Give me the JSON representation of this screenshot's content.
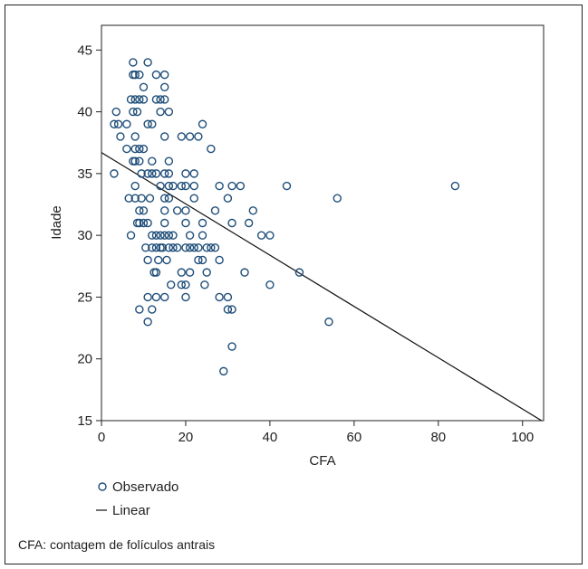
{
  "chart_data": {
    "type": "scatter",
    "xlabel": "CFA",
    "ylabel": "Idade",
    "xlim": [
      0,
      105
    ],
    "ylim": [
      15,
      47
    ],
    "xticks": [
      0,
      20,
      40,
      60,
      80,
      100
    ],
    "yticks": [
      15,
      20,
      25,
      30,
      35,
      40,
      45
    ],
    "grid": false,
    "legend_placement": "bottom-left",
    "series": [
      {
        "name": "Observado",
        "kind": "scatter",
        "color": "#1f4e79",
        "points": [
          [
            3,
            35
          ],
          [
            3,
            39
          ],
          [
            3.5,
            40
          ],
          [
            4,
            39
          ],
          [
            4.5,
            38
          ],
          [
            6,
            37
          ],
          [
            6,
            39
          ],
          [
            6.5,
            33
          ],
          [
            7,
            30
          ],
          [
            7,
            41
          ],
          [
            7.5,
            36
          ],
          [
            7.5,
            40
          ],
          [
            7.5,
            43
          ],
          [
            7.5,
            44
          ],
          [
            8,
            33
          ],
          [
            8,
            34
          ],
          [
            8,
            36
          ],
          [
            8,
            37
          ],
          [
            8,
            38
          ],
          [
            8,
            41
          ],
          [
            8,
            43
          ],
          [
            8.5,
            31
          ],
          [
            8.5,
            40
          ],
          [
            9,
            24
          ],
          [
            9,
            31
          ],
          [
            9,
            32
          ],
          [
            9,
            36
          ],
          [
            9,
            37
          ],
          [
            9,
            41
          ],
          [
            9,
            43
          ],
          [
            9.5,
            33
          ],
          [
            9.5,
            35
          ],
          [
            10,
            31
          ],
          [
            10,
            32
          ],
          [
            10,
            37
          ],
          [
            10,
            41
          ],
          [
            10,
            42
          ],
          [
            10.5,
            29
          ],
          [
            11,
            23
          ],
          [
            11,
            25
          ],
          [
            11,
            28
          ],
          [
            11,
            31
          ],
          [
            11,
            35
          ],
          [
            11,
            39
          ],
          [
            11,
            44
          ],
          [
            11.5,
            33
          ],
          [
            12,
            24
          ],
          [
            12,
            29
          ],
          [
            12,
            30
          ],
          [
            12,
            35
          ],
          [
            12,
            36
          ],
          [
            12,
            39
          ],
          [
            12.5,
            27
          ],
          [
            13,
            25
          ],
          [
            13,
            27
          ],
          [
            13,
            29
          ],
          [
            13,
            30
          ],
          [
            13,
            35
          ],
          [
            13,
            41
          ],
          [
            13,
            43
          ],
          [
            13.5,
            28
          ],
          [
            14,
            29
          ],
          [
            14,
            30
          ],
          [
            14,
            34
          ],
          [
            14,
            40
          ],
          [
            14,
            41
          ],
          [
            14.5,
            29
          ],
          [
            15,
            25
          ],
          [
            15,
            30
          ],
          [
            15,
            31
          ],
          [
            15,
            32
          ],
          [
            15,
            33
          ],
          [
            15,
            35
          ],
          [
            15,
            38
          ],
          [
            15,
            41
          ],
          [
            15,
            42
          ],
          [
            15,
            43
          ],
          [
            15.5,
            28
          ],
          [
            16,
            29
          ],
          [
            16,
            30
          ],
          [
            16,
            33
          ],
          [
            16,
            34
          ],
          [
            16,
            35
          ],
          [
            16,
            36
          ],
          [
            16,
            40
          ],
          [
            16.5,
            26
          ],
          [
            17,
            29
          ],
          [
            17,
            30
          ],
          [
            17,
            34
          ],
          [
            18,
            29
          ],
          [
            18,
            32
          ],
          [
            19,
            26
          ],
          [
            19,
            27
          ],
          [
            19,
            34
          ],
          [
            19,
            38
          ],
          [
            20,
            25
          ],
          [
            20,
            26
          ],
          [
            20,
            29
          ],
          [
            20,
            31
          ],
          [
            20,
            32
          ],
          [
            20,
            34
          ],
          [
            20,
            35
          ],
          [
            21,
            27
          ],
          [
            21,
            29
          ],
          [
            21,
            30
          ],
          [
            21,
            38
          ],
          [
            22,
            29
          ],
          [
            22,
            33
          ],
          [
            22,
            34
          ],
          [
            22,
            35
          ],
          [
            23,
            28
          ],
          [
            23,
            29
          ],
          [
            23,
            38
          ],
          [
            24,
            28
          ],
          [
            24,
            30
          ],
          [
            24,
            31
          ],
          [
            24,
            39
          ],
          [
            24.5,
            26
          ],
          [
            25,
            27
          ],
          [
            25,
            29
          ],
          [
            26,
            29
          ],
          [
            26,
            37
          ],
          [
            27,
            29
          ],
          [
            27,
            32
          ],
          [
            28,
            25
          ],
          [
            28,
            28
          ],
          [
            28,
            34
          ],
          [
            29,
            19
          ],
          [
            30,
            24
          ],
          [
            30,
            25
          ],
          [
            30,
            33
          ],
          [
            31,
            21
          ],
          [
            31,
            24
          ],
          [
            31,
            34
          ],
          [
            31,
            31
          ],
          [
            33,
            34
          ],
          [
            34,
            27
          ],
          [
            35,
            31
          ],
          [
            36,
            32
          ],
          [
            38,
            30
          ],
          [
            40,
            30
          ],
          [
            40,
            26
          ],
          [
            44,
            34
          ],
          [
            47,
            27
          ],
          [
            54,
            23
          ],
          [
            56,
            33
          ],
          [
            84,
            34
          ]
        ]
      },
      {
        "name": "Linear",
        "kind": "line",
        "color": "#111111",
        "points": [
          [
            0,
            36.7
          ],
          [
            105,
            14.9
          ]
        ]
      }
    ],
    "caption": "CFA: contagem de folículos antrais"
  }
}
